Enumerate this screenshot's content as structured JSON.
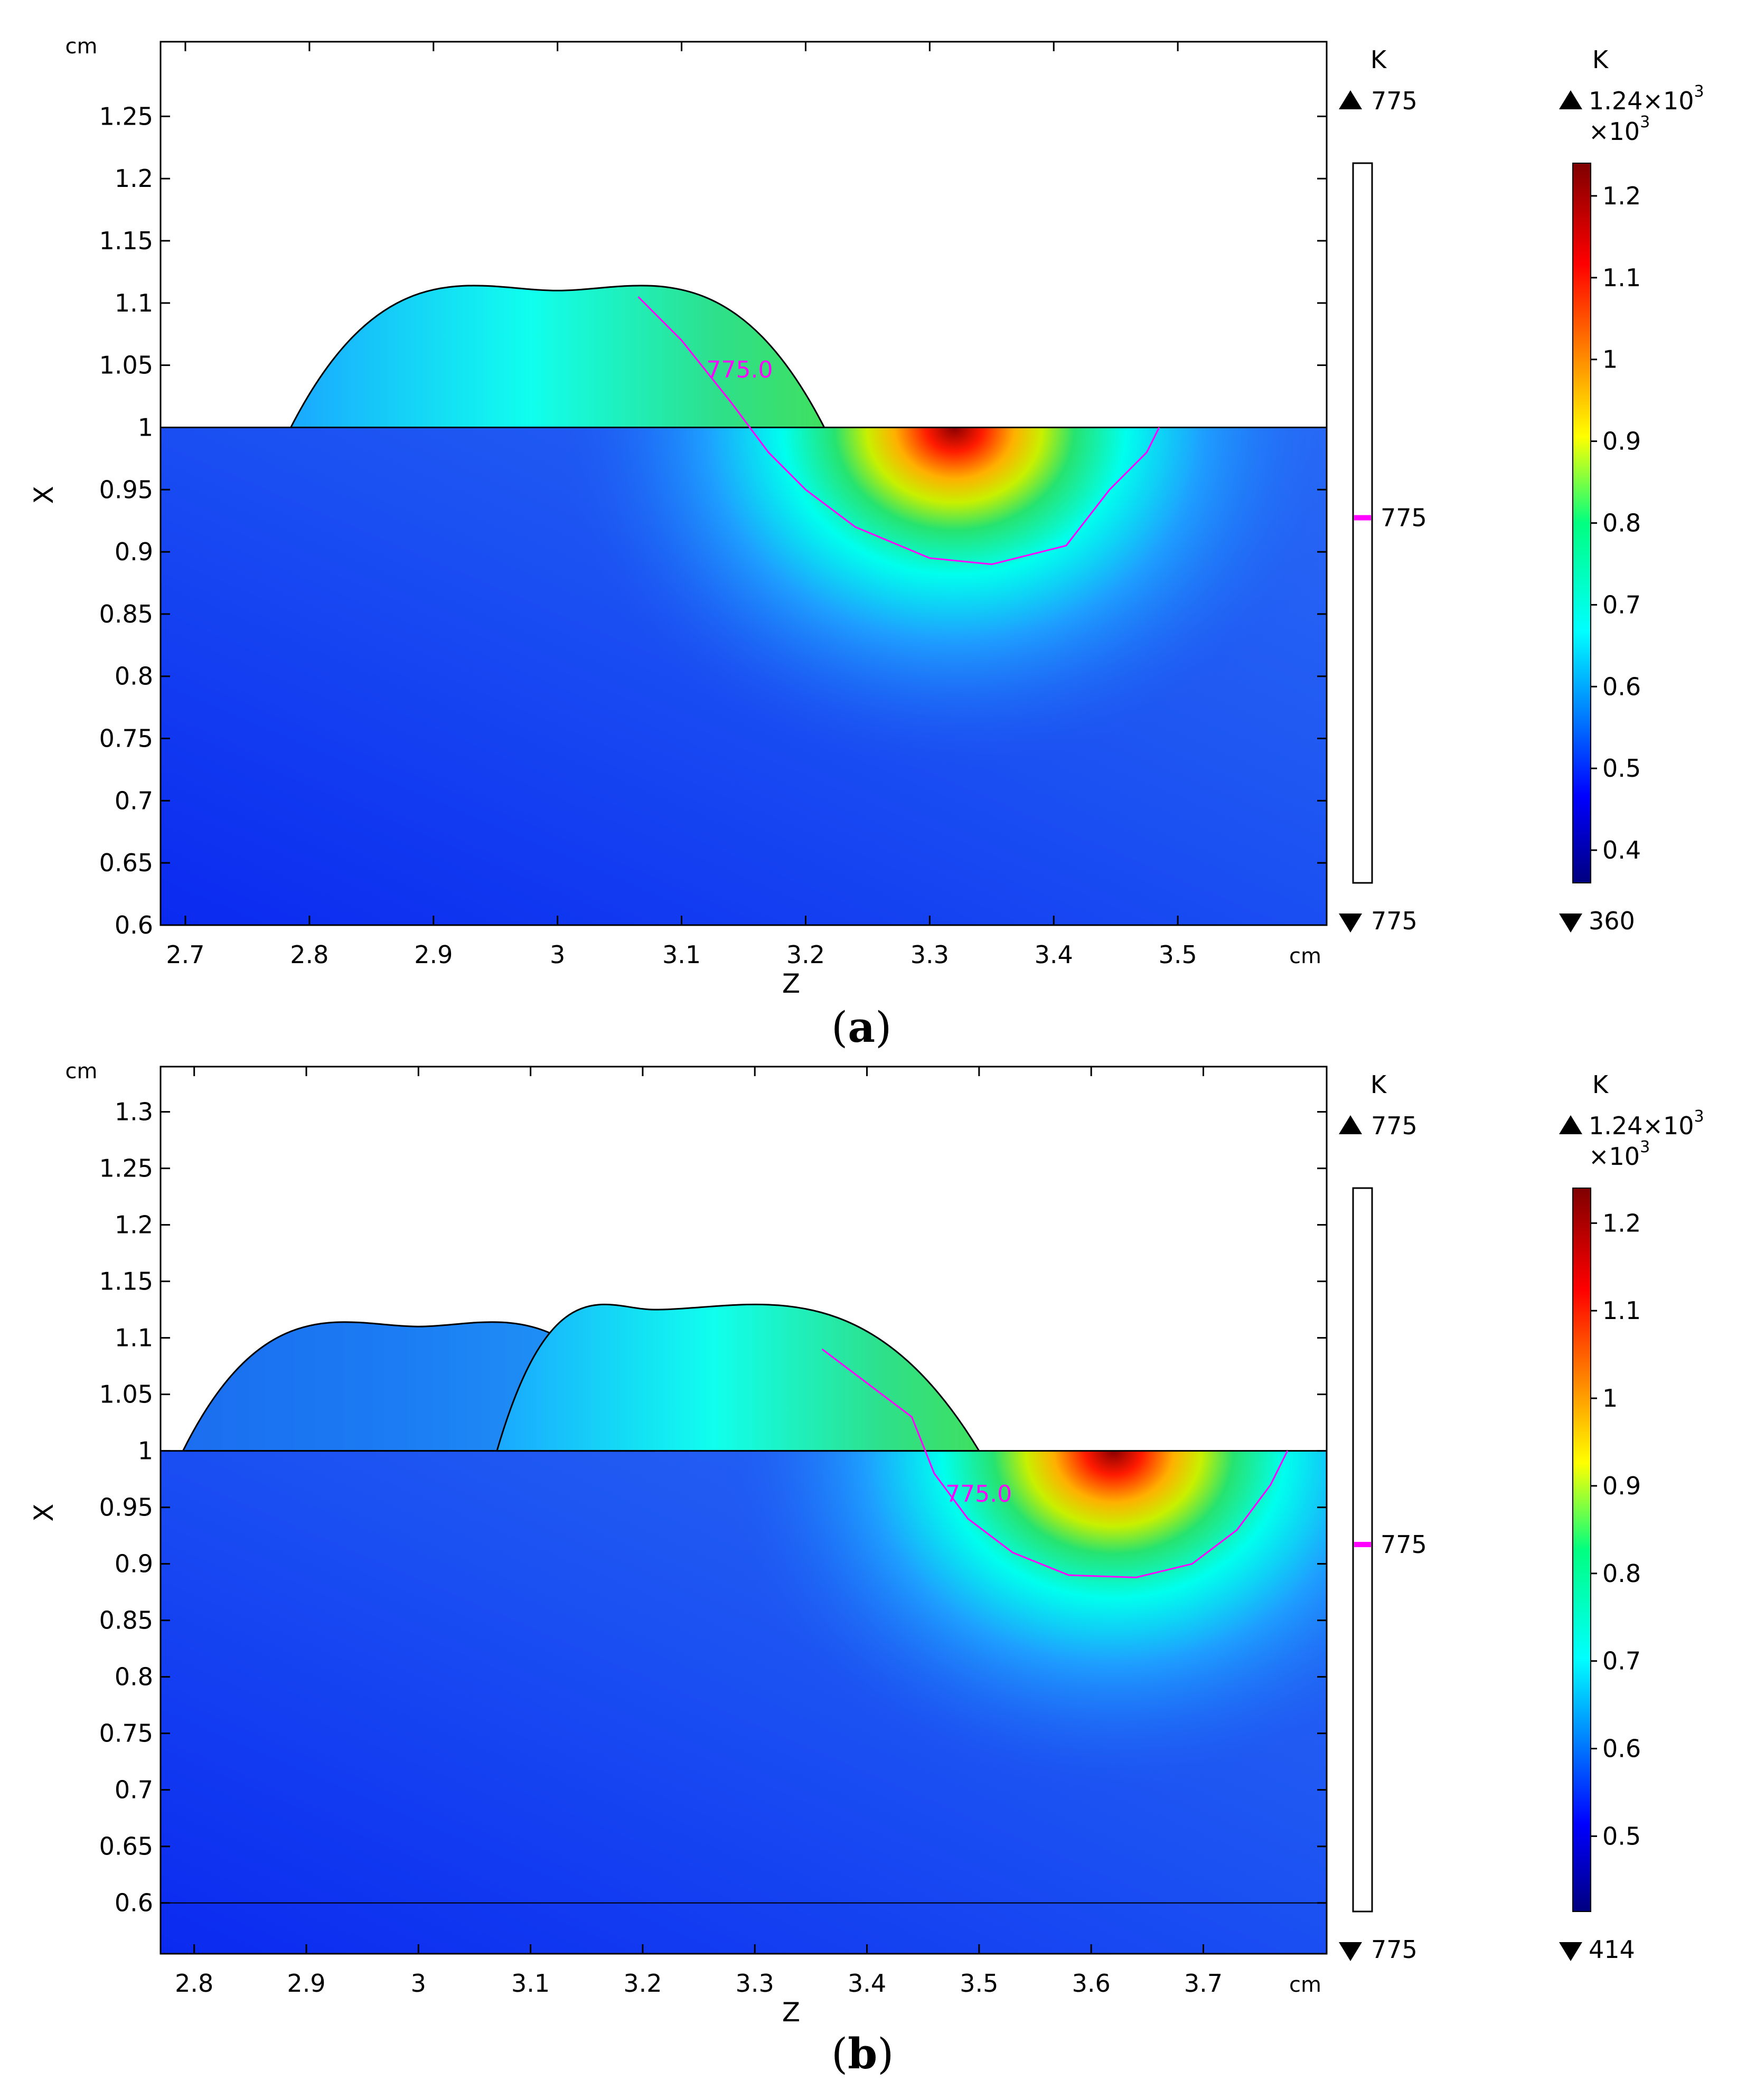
{
  "figure": {
    "panel_labels": [
      {
        "open": "(",
        "letter": "a",
        "close": ")"
      },
      {
        "open": "(",
        "letter": "b",
        "close": ")"
      }
    ]
  },
  "chart_data": [
    {
      "type": "heatmap",
      "panel": "a",
      "xlabel": "Z",
      "ylabel": "X",
      "x_unit": "cm",
      "y_unit": "cm",
      "xlim": [
        2.68,
        3.62
      ],
      "ylim": [
        0.6,
        1.31
      ],
      "x_ticks": [
        2.7,
        2.8,
        2.9,
        3,
        3.1,
        3.2,
        3.3,
        3.4,
        3.5
      ],
      "y_ticks": [
        0.6,
        0.65,
        0.7,
        0.75,
        0.8,
        0.85,
        0.9,
        0.95,
        1,
        1.05,
        1.1,
        1.15,
        1.2,
        1.25
      ],
      "colormap": "rainbow",
      "colors": {
        "accent_contour": "#ff00ff",
        "max": "#7f0000",
        "min": "#00007f"
      },
      "substrate_top": 1.0,
      "bead_profiles": [
        {
          "z_start": 2.785,
          "z_end": 3.215,
          "peak_z": 3.0,
          "peak_x": 1.11
        }
      ],
      "hot_spot": {
        "z": 3.32,
        "x": 1.0
      },
      "contour": {
        "value": 775,
        "label": "775.0",
        "label_pos": [
          3.12,
          1.04
        ],
        "path": [
          [
            3.065,
            1.105
          ],
          [
            3.1,
            1.07
          ],
          [
            3.14,
            1.02
          ],
          [
            3.17,
            0.98
          ],
          [
            3.2,
            0.95
          ],
          [
            3.24,
            0.92
          ],
          [
            3.3,
            0.895
          ],
          [
            3.35,
            0.89
          ],
          [
            3.41,
            0.905
          ],
          [
            3.445,
            0.95
          ],
          [
            3.475,
            0.98
          ],
          [
            3.485,
            1.0
          ]
        ]
      },
      "contour_legend": {
        "unit": "K",
        "max_label": "775",
        "mid_label": "775",
        "min_label": "775"
      },
      "colorbar": {
        "unit": "K",
        "max_label": "1.24×10",
        "max_exp": "3",
        "scale_label": "×10",
        "scale_exp": "3",
        "ticks": [
          "1.2",
          "1.1",
          "1",
          "0.9",
          "0.8",
          "0.7",
          "0.6",
          "0.5",
          "0.4"
        ],
        "tick_values": [
          1.2,
          1.1,
          1.0,
          0.9,
          0.8,
          0.7,
          0.6,
          0.5,
          0.4
        ],
        "min_label": "360",
        "range": [
          0.36,
          1.24
        ]
      },
      "caption": "a"
    },
    {
      "type": "heatmap",
      "panel": "b",
      "xlabel": "Z",
      "ylabel": "X",
      "x_unit": "cm",
      "y_unit": "cm",
      "xlim": [
        2.77,
        3.81
      ],
      "ylim": [
        0.555,
        1.34
      ],
      "x_ticks": [
        2.8,
        2.9,
        3,
        3.1,
        3.2,
        3.3,
        3.4,
        3.5,
        3.6,
        3.7
      ],
      "y_ticks": [
        0.6,
        0.65,
        0.7,
        0.75,
        0.8,
        0.85,
        0.9,
        0.95,
        1,
        1.05,
        1.1,
        1.15,
        1.2,
        1.25,
        1.3
      ],
      "colormap": "rainbow",
      "colors": {
        "accent_contour": "#ff00ff",
        "max": "#7f0000",
        "min": "#00007f"
      },
      "substrate_top": 1.0,
      "bead_profiles": [
        {
          "z_start": 2.79,
          "z_end": 3.21,
          "peak_z": 3.0,
          "peak_x": 1.11
        },
        {
          "z_start": 3.07,
          "z_end": 3.5,
          "peak_z": 3.21,
          "peak_x": 1.125
        }
      ],
      "hot_spot": {
        "z": 3.62,
        "x": 1.0
      },
      "contour": {
        "value": 775,
        "label": "775.0",
        "label_pos": [
          3.47,
          0.955
        ],
        "path": [
          [
            3.36,
            1.09
          ],
          [
            3.4,
            1.06
          ],
          [
            3.44,
            1.03
          ],
          [
            3.46,
            0.98
          ],
          [
            3.49,
            0.94
          ],
          [
            3.53,
            0.91
          ],
          [
            3.58,
            0.89
          ],
          [
            3.64,
            0.888
          ],
          [
            3.69,
            0.9
          ],
          [
            3.73,
            0.93
          ],
          [
            3.76,
            0.97
          ],
          [
            3.775,
            1.0
          ]
        ]
      },
      "contour_legend": {
        "unit": "K",
        "max_label": "775",
        "mid_label": "775",
        "min_label": "775"
      },
      "colorbar": {
        "unit": "K",
        "max_label": "1.24×10",
        "max_exp": "3",
        "scale_label": "×10",
        "scale_exp": "3",
        "ticks": [
          "1.2",
          "1.1",
          "1",
          "0.9",
          "0.8",
          "0.7",
          "0.6",
          "0.5"
        ],
        "tick_values": [
          1.2,
          1.1,
          1.0,
          0.9,
          0.8,
          0.7,
          0.6,
          0.5
        ],
        "min_label": "414",
        "range": [
          0.414,
          1.24
        ]
      },
      "caption": "b"
    }
  ]
}
